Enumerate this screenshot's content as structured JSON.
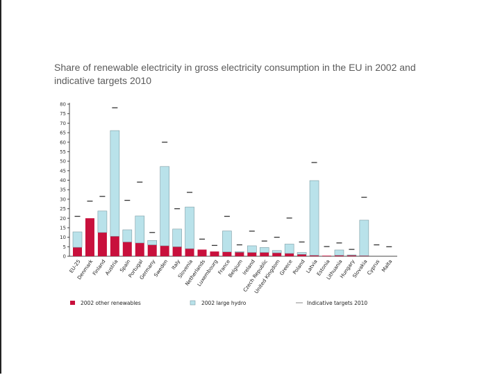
{
  "slide": {
    "title": "Share of renewable electricity in gross electricity consumption in the EU in 2002 and indicative targets 2010"
  },
  "chart_data": {
    "type": "bar",
    "title": "",
    "xlabel": "",
    "ylabel": "",
    "ylim": [
      0,
      80
    ],
    "yticks": [
      0,
      5,
      10,
      15,
      20,
      25,
      30,
      35,
      40,
      45,
      50,
      55,
      60,
      65,
      70,
      75,
      80
    ],
    "stacked": true,
    "grid": false,
    "legend_position": "bottom",
    "colors": {
      "other_renewables": "#c8103c",
      "large_hydro": "#b9e2ea",
      "bar_stroke": "#7a9aa2",
      "target": "#333333"
    },
    "categories": [
      "EU-25",
      "Denmark",
      "Finland",
      "Austria",
      "Spain",
      "Portugal",
      "Germany",
      "Sweden",
      "Italy",
      "Slovenia",
      "Netherlands",
      "Luxembourg",
      "France",
      "Belgium",
      "Ireland",
      "Czech Republic",
      "United Kingdom",
      "Greece",
      "Poland",
      "Latvia",
      "Estonia",
      "Lithuania",
      "Hungary",
      "Slovakia",
      "Cyprus",
      "Malta"
    ],
    "series": [
      {
        "name": "2002 other renewables",
        "values": [
          4.7,
          20.0,
          12.5,
          10.5,
          7.5,
          7.0,
          6.0,
          5.5,
          5.0,
          4.0,
          3.5,
          2.5,
          2.3,
          2.1,
          2.0,
          2.0,
          1.8,
          1.5,
          1.0,
          0.5,
          0.3,
          0.5,
          0.5,
          0.3,
          0.0,
          0.0
        ]
      },
      {
        "name": "2002 large hydro",
        "values": [
          8.1,
          0.0,
          11.3,
          55.6,
          6.4,
          14.2,
          2.3,
          41.7,
          9.3,
          21.9,
          0.0,
          0.0,
          11.0,
          0.3,
          3.5,
          2.6,
          1.2,
          4.9,
          1.0,
          39.3,
          0.0,
          2.8,
          0.2,
          18.7,
          0.0,
          0.0
        ]
      },
      {
        "name": "Indicative targets 2010",
        "type": "marker",
        "values": [
          21.0,
          29.0,
          31.5,
          78.1,
          29.4,
          39.0,
          12.5,
          60.0,
          25.0,
          33.6,
          9.0,
          5.7,
          21.0,
          6.0,
          13.2,
          8.0,
          10.0,
          20.1,
          7.5,
          49.3,
          5.1,
          7.0,
          3.6,
          31.0,
          6.0,
          5.0
        ]
      }
    ],
    "legend": [
      "2002 other renewables",
      "2002  large hydro",
      "Indicative targets 2010"
    ]
  }
}
